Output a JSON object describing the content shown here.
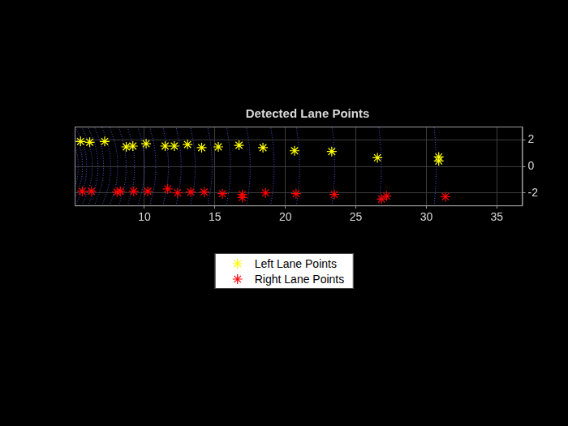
{
  "chart_data": {
    "type": "scatter",
    "title": "Detected Lane Points",
    "xlim": [
      5.05,
      36.8
    ],
    "xticks": [
      10,
      15,
      20,
      25,
      30,
      35
    ],
    "ylim": [
      -2.95,
      3
    ],
    "yticks": [
      -2,
      0,
      2
    ],
    "grid": true,
    "legend": "bottom",
    "series": [
      {
        "name": "Left Lane Points",
        "color": "#ffff00",
        "marker": "asterisk",
        "values": [
          [
            5.47,
            1.88
          ],
          [
            6.12,
            1.82
          ],
          [
            7.18,
            1.88
          ],
          [
            8.71,
            1.47
          ],
          [
            9.18,
            1.53
          ],
          [
            10.12,
            1.71
          ],
          [
            11.47,
            1.53
          ],
          [
            12.12,
            1.53
          ],
          [
            13.06,
            1.65
          ],
          [
            14.06,
            1.41
          ],
          [
            15.24,
            1.47
          ],
          [
            16.71,
            1.59
          ],
          [
            18.41,
            1.41
          ],
          [
            20.65,
            1.18
          ],
          [
            23.29,
            1.12
          ],
          [
            26.53,
            0.65
          ],
          [
            30.88,
            0.71
          ],
          [
            30.88,
            0.41
          ]
        ]
      },
      {
        "name": "Right Lane Points",
        "color": "#ff0000",
        "marker": "asterisk",
        "values": [
          [
            5.59,
            -1.88
          ],
          [
            6.24,
            -1.88
          ],
          [
            8.06,
            -1.94
          ],
          [
            8.29,
            -1.88
          ],
          [
            9.24,
            -1.88
          ],
          [
            10.24,
            -1.88
          ],
          [
            11.65,
            -1.71
          ],
          [
            12.35,
            -2.0
          ],
          [
            13.29,
            -1.94
          ],
          [
            14.24,
            -1.94
          ],
          [
            15.53,
            -2.06
          ],
          [
            16.94,
            -2.12
          ],
          [
            16.94,
            -2.35
          ],
          [
            18.59,
            -2.0
          ],
          [
            20.76,
            -2.06
          ],
          [
            23.47,
            -2.12
          ],
          [
            26.82,
            -2.47
          ],
          [
            27.18,
            -2.24
          ],
          [
            31.35,
            -2.29
          ]
        ]
      }
    ],
    "point_cloud": {
      "color": "#4b55d8",
      "rings": [
        [
          [
            4.37,
            -3
          ],
          [
            5.08,
            -1.5
          ],
          [
            5.3,
            0
          ],
          [
            5.08,
            1.5
          ],
          [
            4.37,
            3
          ]
        ],
        [
          [
            4.73,
            -3
          ],
          [
            5.4,
            -1.5
          ],
          [
            5.6,
            0
          ],
          [
            5.4,
            1.5
          ],
          [
            4.73,
            3
          ]
        ],
        [
          [
            5.08,
            -3
          ],
          [
            5.71,
            -1.5
          ],
          [
            5.9,
            0
          ],
          [
            5.71,
            1.5
          ],
          [
            5.08,
            3
          ]
        ],
        [
          [
            5.54,
            -3
          ],
          [
            6.12,
            -1.5
          ],
          [
            6.3,
            0
          ],
          [
            6.12,
            1.5
          ],
          [
            5.54,
            3
          ]
        ],
        [
          [
            5.99,
            -3
          ],
          [
            6.53,
            -1.5
          ],
          [
            6.7,
            0
          ],
          [
            6.53,
            1.5
          ],
          [
            5.99,
            3
          ]
        ],
        [
          [
            6.44,
            -3
          ],
          [
            6.94,
            -1.5
          ],
          [
            7.1,
            0
          ],
          [
            6.94,
            1.5
          ],
          [
            6.44,
            3
          ]
        ],
        [
          [
            6.98,
            -3
          ],
          [
            7.45,
            -1.5
          ],
          [
            7.6,
            0
          ],
          [
            7.45,
            1.5
          ],
          [
            6.98,
            3
          ]
        ],
        [
          [
            7.52,
            -3
          ],
          [
            7.96,
            -1.5
          ],
          [
            8.1,
            0
          ],
          [
            7.96,
            1.5
          ],
          [
            7.52,
            3
          ]
        ],
        [
          [
            8.17,
            -3
          ],
          [
            8.57,
            -1.5
          ],
          [
            8.7,
            0
          ],
          [
            8.57,
            1.5
          ],
          [
            8.17,
            3
          ]
        ],
        [
          [
            8.8,
            -3
          ],
          [
            9.18,
            -1.5
          ],
          [
            9.3,
            0
          ],
          [
            9.18,
            1.5
          ],
          [
            8.8,
            3
          ]
        ],
        [
          [
            9.54,
            -3
          ],
          [
            9.89,
            -1.5
          ],
          [
            10.0,
            0
          ],
          [
            9.89,
            1.5
          ],
          [
            9.54,
            3
          ]
        ],
        [
          [
            10.37,
            -3
          ],
          [
            10.7,
            -1.5
          ],
          [
            10.8,
            0
          ],
          [
            10.7,
            1.5
          ],
          [
            10.37,
            3
          ]
        ],
        [
          [
            11.31,
            -3
          ],
          [
            11.6,
            -1.5
          ],
          [
            11.7,
            0
          ],
          [
            11.6,
            1.5
          ],
          [
            11.31,
            3
          ]
        ],
        [
          [
            12.24,
            -3
          ],
          [
            12.51,
            -1.5
          ],
          [
            12.6,
            0
          ],
          [
            12.51,
            1.5
          ],
          [
            12.24,
            3
          ]
        ],
        [
          [
            13.26,
            -3
          ],
          [
            13.52,
            -1.5
          ],
          [
            13.6,
            0
          ],
          [
            13.52,
            1.5
          ],
          [
            13.26,
            3
          ]
        ],
        [
          [
            14.49,
            -3
          ],
          [
            14.72,
            -1.5
          ],
          [
            14.8,
            0
          ],
          [
            14.72,
            1.5
          ],
          [
            14.49,
            3
          ]
        ],
        [
          [
            15.82,
            -3
          ],
          [
            16.03,
            -1.5
          ],
          [
            16.1,
            0
          ],
          [
            16.03,
            1.5
          ],
          [
            15.82,
            3
          ]
        ],
        [
          [
            17.24,
            -3
          ],
          [
            17.44,
            -1.5
          ],
          [
            17.5,
            0
          ],
          [
            17.44,
            1.5
          ],
          [
            17.24,
            3
          ]
        ],
        [
          [
            18.96,
            -3
          ],
          [
            19.14,
            -1.5
          ],
          [
            19.2,
            0
          ],
          [
            19.14,
            1.5
          ],
          [
            18.96,
            3
          ]
        ],
        [
          [
            20.78,
            -3
          ],
          [
            20.95,
            -1.5
          ],
          [
            21.0,
            0
          ],
          [
            20.95,
            1.5
          ],
          [
            20.78,
            3
          ]
        ],
        [
          [
            23.31,
            -3
          ],
          [
            23.45,
            -1.5
          ],
          [
            23.5,
            0
          ],
          [
            23.45,
            1.5
          ],
          [
            23.31,
            3
          ]
        ],
        [
          [
            26.63,
            -3
          ],
          [
            26.76,
            -1.5
          ],
          [
            26.8,
            0
          ],
          [
            26.76,
            1.5
          ],
          [
            26.63,
            3
          ]
        ],
        [
          [
            30.55,
            -3
          ],
          [
            30.66,
            -1.5
          ],
          [
            30.7,
            0
          ],
          [
            30.66,
            1.5
          ],
          [
            30.55,
            3
          ]
        ]
      ]
    }
  }
}
